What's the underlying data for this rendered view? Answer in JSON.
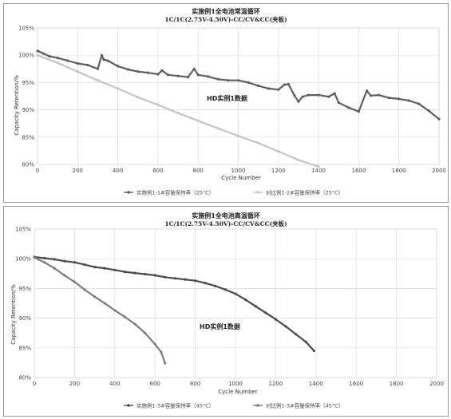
{
  "chart_data": [
    {
      "type": "line",
      "title": "实施例1全电池常温循环",
      "subtitle": "1C/1C(2.75V-4.50V)-CC/CV&CC(夹板)",
      "xlabel": "Cycle Number",
      "ylabel": "Capacity Retention/%",
      "xlim": [
        0,
        2000
      ],
      "ylim": [
        80,
        105
      ],
      "xticks": [
        "0",
        "200",
        "400",
        "600",
        "800",
        "1000",
        "1200",
        "1400",
        "1600",
        "1800",
        "2000"
      ],
      "yticks": [
        "80%",
        "85%",
        "90%",
        "95%",
        "100%",
        "105%"
      ],
      "grid": true,
      "legend": "bottom",
      "annotation": "HD实例1数据",
      "series": [
        {
          "name": "实施例1-1#容量保持率（25°C）",
          "color": "#5e5e5e",
          "x": [
            0,
            30,
            60,
            100,
            150,
            200,
            250,
            300,
            320,
            330,
            350,
            400,
            450,
            500,
            550,
            600,
            620,
            650,
            700,
            750,
            780,
            800,
            850,
            900,
            950,
            1000,
            1050,
            1100,
            1150,
            1200,
            1230,
            1250,
            1280,
            1300,
            1320,
            1350,
            1400,
            1450,
            1480,
            1500,
            1550,
            1600,
            1640,
            1660,
            1700,
            1750,
            1800,
            1850,
            1900,
            1950,
            2000
          ],
          "y": [
            100.8,
            100.3,
            99.8,
            99.5,
            99.0,
            98.5,
            98.2,
            97.5,
            100.0,
            99.2,
            99.0,
            98.0,
            97.4,
            97.0,
            96.8,
            96.5,
            97.2,
            96.4,
            96.2,
            96.0,
            97.5,
            96.4,
            96.1,
            95.6,
            95.4,
            95.4,
            95.0,
            94.4,
            93.9,
            93.7,
            94.6,
            94.7,
            92.6,
            91.5,
            92.4,
            92.7,
            92.7,
            92.4,
            93.0,
            91.3,
            90.4,
            89.7,
            93.5,
            92.6,
            92.7,
            92.2,
            92.0,
            91.7,
            91.1,
            89.8,
            88.3
          ]
        },
        {
          "name": "对比例1-2#容量保持率（25°C）",
          "color": "#c4c4c4",
          "x": [
            0,
            100,
            200,
            300,
            400,
            500,
            600,
            700,
            800,
            900,
            1000,
            1100,
            1200,
            1300,
            1400
          ],
          "y": [
            100.0,
            98.6,
            97.0,
            95.4,
            93.9,
            92.3,
            90.9,
            89.4,
            88.0,
            86.6,
            85.2,
            83.9,
            82.4,
            80.8,
            79.6
          ]
        }
      ]
    },
    {
      "type": "line",
      "title": "实施例1全电池高温循环",
      "subtitle": "1C/1C(2.75V-4.50V)-CC/CV&CC(夹板)",
      "xlabel": "Cycle Number",
      "ylabel": "Capacity Retention/%",
      "xlim": [
        0,
        2000
      ],
      "ylim": [
        80,
        105
      ],
      "xticks": [
        "0",
        "200",
        "400",
        "600",
        "800",
        "1000",
        "1200",
        "1400",
        "1600",
        "1800",
        "2000"
      ],
      "yticks": [
        "80%",
        "85%",
        "90%",
        "95%",
        "100%",
        "105%"
      ],
      "grid": true,
      "legend": "bottom",
      "annotation": "HD实例1数据",
      "series": [
        {
          "name": "实施例1-3#容量保持率（45°C）",
          "color": "#4a4a4a",
          "x": [
            0,
            50,
            100,
            150,
            200,
            250,
            300,
            350,
            400,
            450,
            500,
            550,
            600,
            650,
            700,
            750,
            800,
            850,
            900,
            950,
            1000,
            1050,
            1100,
            1150,
            1200,
            1250,
            1300,
            1350,
            1390
          ],
          "y": [
            100.3,
            100.1,
            99.9,
            99.6,
            99.4,
            99.0,
            98.6,
            98.4,
            98.1,
            97.8,
            97.6,
            97.4,
            97.2,
            96.9,
            96.7,
            96.5,
            96.3,
            95.9,
            95.4,
            94.8,
            94.1,
            93.1,
            92.0,
            90.9,
            89.8,
            88.6,
            87.3,
            86.0,
            84.5
          ]
        },
        {
          "name": "对比例1-3#容量保持率（45°C）",
          "color": "#7d7d7d",
          "x": [
            0,
            50,
            100,
            150,
            200,
            250,
            300,
            350,
            400,
            450,
            500,
            550,
            600,
            630,
            650
          ],
          "y": [
            100.2,
            99.4,
            98.4,
            97.2,
            96.1,
            94.8,
            93.6,
            92.5,
            91.3,
            90.2,
            89.0,
            87.5,
            85.6,
            84.3,
            82.4
          ]
        }
      ]
    }
  ]
}
